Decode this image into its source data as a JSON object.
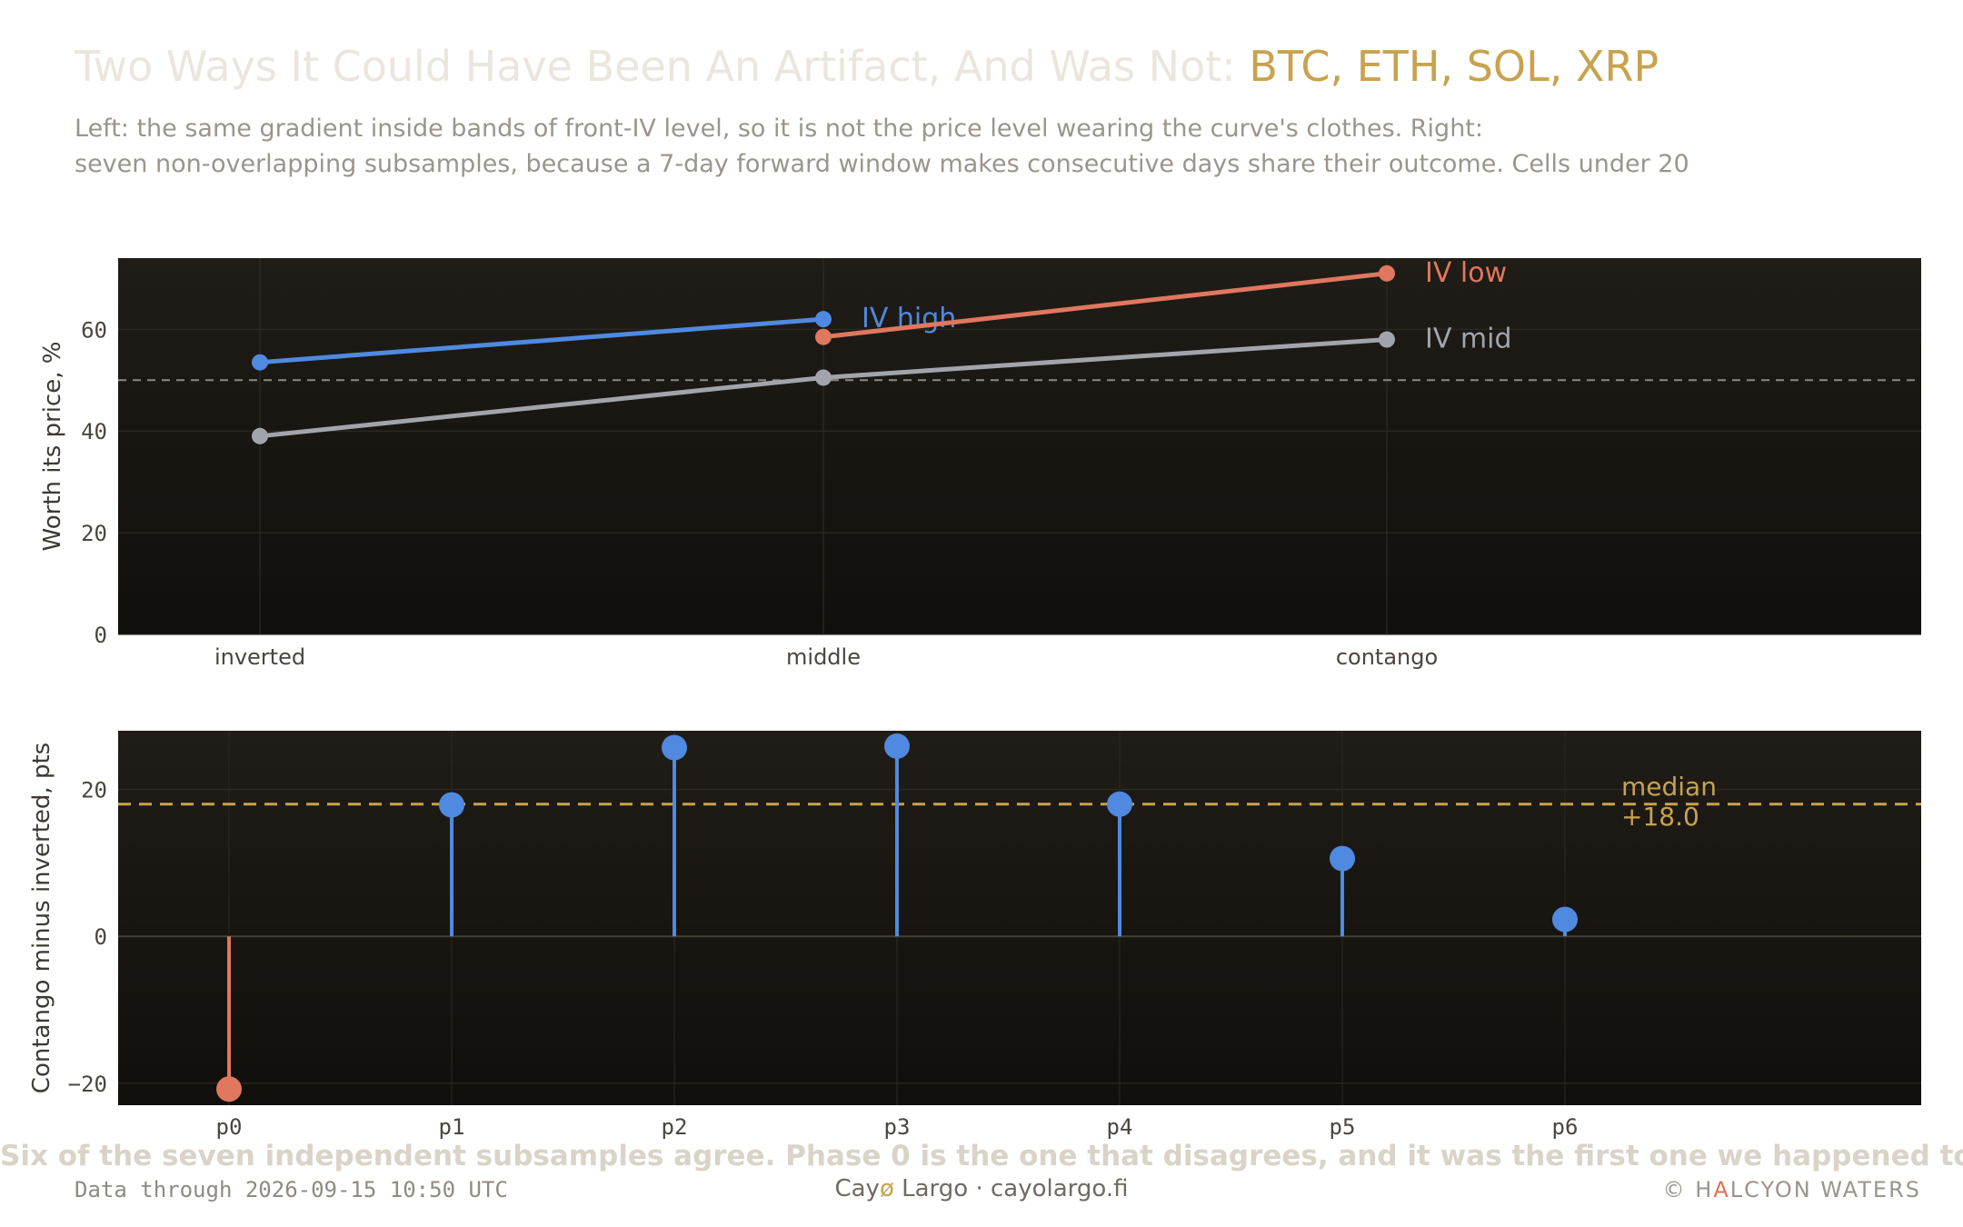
{
  "title": {
    "main": "Two Ways It Could Have Been An Artifact, And Was Not:",
    "highlight": "BTC, ETH, SOL, XRP"
  },
  "subtitle": {
    "line1": "Left: the same gradient inside bands of front-IV level, so it is not the price level wearing the curve's clothes. Right:",
    "line2": "seven non-overlapping subsamples, because a 7-day forward window makes consecutive days share their outcome. Cells under 20"
  },
  "takeaway": "Six of the seven independent subsamples agree. Phase 0 is the one that disagrees, and it was the first one we happened to run.",
  "footer": {
    "data_through": "Data through 2026-09-15 10:50 UTC",
    "brand_pre": "Cay",
    "brand_slash": "ø",
    "brand_post": " Largo  ·  cayolargo.fi",
    "copyright": "© H",
    "copyright_accent": "A",
    "copyright_post": "LCYON WATERS"
  },
  "colors": {
    "panel_bg_top": "#201c17",
    "panel_bg_bottom": "#110f0c",
    "iv_high": "#4f8ae0",
    "iv_low": "#e0775f",
    "iv_mid": "#a1a5ab",
    "median": "#c8a24e",
    "positive": "#4f8ae0",
    "negative": "#e0775f"
  },
  "chart_data": [
    {
      "type": "line",
      "ylabel": "Worth its price, %",
      "categories": [
        "inverted",
        "middle",
        "contango"
      ],
      "ylim": [
        0,
        74
      ],
      "yticks": [
        0,
        20,
        40,
        60
      ],
      "reference_line": 50,
      "grid": true,
      "series": [
        {
          "name": "IV high",
          "values": [
            53.5,
            62.0,
            null
          ],
          "color": "#4f8ae0"
        },
        {
          "name": "IV low",
          "values": [
            null,
            58.5,
            71.0
          ],
          "color": "#e0775f"
        },
        {
          "name": "IV mid",
          "values": [
            39.0,
            50.5,
            58.0
          ],
          "color": "#a1a5ab"
        }
      ]
    },
    {
      "type": "lollipop",
      "ylabel": "Contango minus inverted, pts",
      "categories": [
        "p0",
        "p1",
        "p2",
        "p3",
        "p4",
        "p5",
        "p6"
      ],
      "values": [
        -20.8,
        17.9,
        25.7,
        25.9,
        18.0,
        10.6,
        2.3
      ],
      "ylim": [
        -23,
        28
      ],
      "yticks": [
        -20,
        0,
        20
      ],
      "median": 18.0,
      "median_label": "median",
      "median_value_label": "+18.0",
      "grid": true
    }
  ]
}
